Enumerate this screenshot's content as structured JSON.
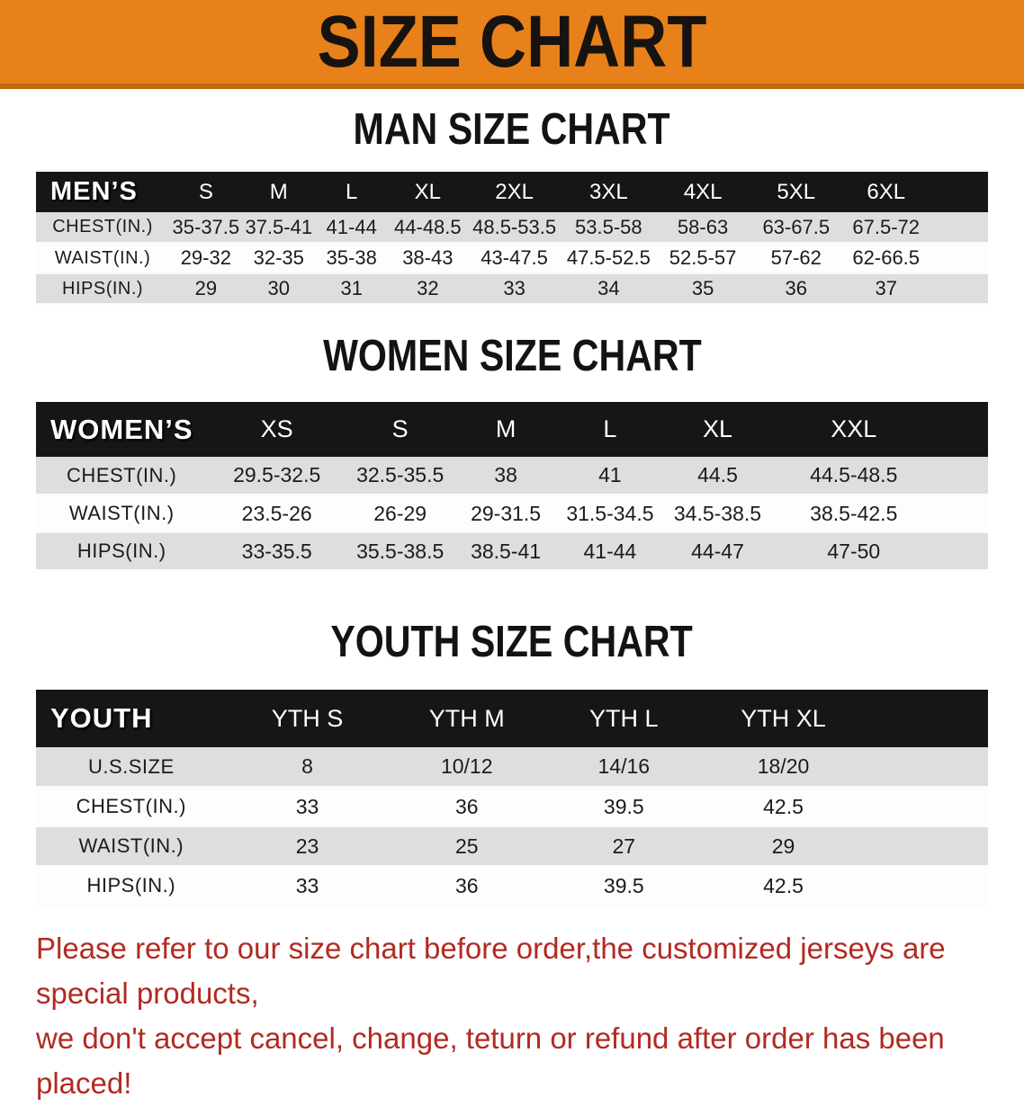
{
  "banner": {
    "title": "SIZE CHART"
  },
  "sections": [
    {
      "id": "men",
      "heading": "MAN SIZE CHART",
      "corner_label": "MEN’S",
      "columns": [
        "S",
        "M",
        "L",
        "XL",
        "2XL",
        "3XL",
        "4XL",
        "5XL",
        "6XL"
      ],
      "rows": [
        {
          "label": "CHEST(IN.)",
          "values": [
            "35-37.5",
            "37.5-41",
            "41-44",
            "44-48.5",
            "48.5-53.5",
            "53.5-58",
            "58-63",
            "63-67.5",
            "67.5-72"
          ]
        },
        {
          "label": "WAIST(IN.)",
          "values": [
            "29-32",
            "32-35",
            "35-38",
            "38-43",
            "43-47.5",
            "47.5-52.5",
            "52.5-57",
            "57-62",
            "62-66.5"
          ]
        },
        {
          "label": "HIPS(IN.)",
          "values": [
            "29",
            "30",
            "31",
            "32",
            "33",
            "34",
            "35",
            "36",
            "37"
          ]
        }
      ]
    },
    {
      "id": "women",
      "heading": "WOMEN SIZE CHART",
      "corner_label": "WOMEN’S",
      "columns": [
        "XS",
        "S",
        "M",
        "L",
        "XL",
        "XXL"
      ],
      "rows": [
        {
          "label": "CHEST(IN.)",
          "values": [
            "29.5-32.5",
            "32.5-35.5",
            "38",
            "41",
            "44.5",
            "44.5-48.5"
          ]
        },
        {
          "label": "WAIST(IN.)",
          "values": [
            "23.5-26",
            "26-29",
            "29-31.5",
            "31.5-34.5",
            "34.5-38.5",
            "38.5-42.5"
          ]
        },
        {
          "label": "HIPS(IN.)",
          "values": [
            "33-35.5",
            "35.5-38.5",
            "38.5-41",
            "41-44",
            "44-47",
            "47-50"
          ]
        }
      ]
    },
    {
      "id": "youth",
      "heading": "YOUTH SIZE CHART",
      "corner_label": "YOUTH",
      "columns": [
        "YTH S",
        "YTH M",
        "YTH L",
        "YTH XL"
      ],
      "rows": [
        {
          "label": "U.S.SIZE",
          "values": [
            "8",
            "10/12",
            "14/16",
            "18/20"
          ]
        },
        {
          "label": "CHEST(IN.)",
          "values": [
            "33",
            "36",
            "39.5",
            "42.5"
          ]
        },
        {
          "label": "WAIST(IN.)",
          "values": [
            "23",
            "25",
            "27",
            "29"
          ]
        },
        {
          "label": "HIPS(IN.)",
          "values": [
            "33",
            "36",
            "39.5",
            "42.5"
          ]
        }
      ]
    }
  ],
  "footer": {
    "line1": "Please refer to our size chart before order,the customized jerseys are special products,",
    "line2": "we don't accept cancel, change, teturn or refund after order has been placed!"
  },
  "colors": {
    "banner_orange": "#E8811A",
    "banner_edge": "#C0690F",
    "header_black": "#161616",
    "row_gray": "#DEDEDE",
    "row_white": "#FDFDFD",
    "footer_red": "#B22A22"
  }
}
